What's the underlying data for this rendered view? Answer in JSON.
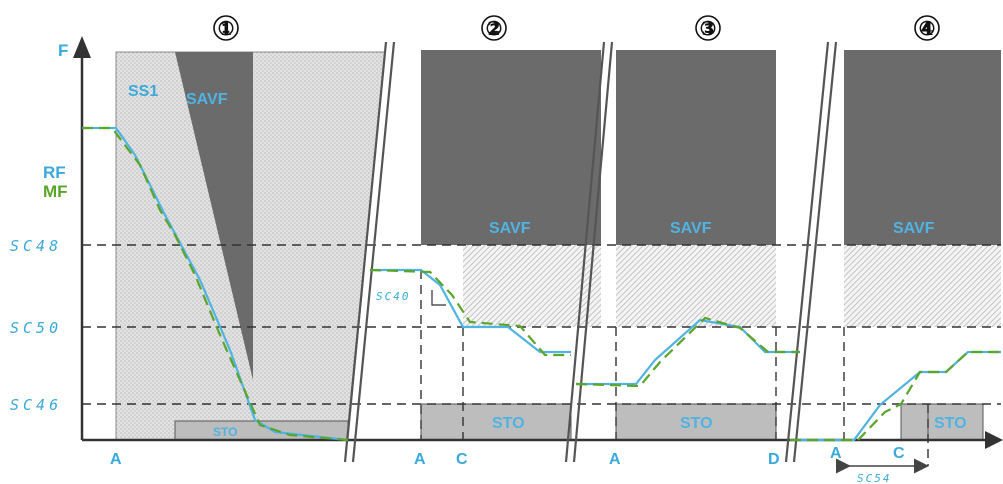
{
  "axis": {
    "y_label": "F",
    "rf_label": "RF",
    "mf_label": "MF"
  },
  "levels": {
    "sc48": "SC48",
    "sc50": "SC50",
    "sc46": "SC46"
  },
  "sections": [
    "①",
    "②",
    "③",
    "④"
  ],
  "blocks": {
    "ss1": "SS1",
    "savf": "SAVF",
    "sto": "STO"
  },
  "x_labels": {
    "a1": "A",
    "a2": "A",
    "c2": "C",
    "a3": "A",
    "d3": "D",
    "a4": "A",
    "c4": "C"
  },
  "annotations": {
    "sc40": "SC40",
    "sc54": "SC54"
  },
  "colors": {
    "rf": "#4fb3e3",
    "mf": "#5aa52a",
    "savf_dark": "#6b6b6b",
    "sto_grey": "#bdbdbd",
    "ss1_dotted": "#d9d9d9"
  }
}
